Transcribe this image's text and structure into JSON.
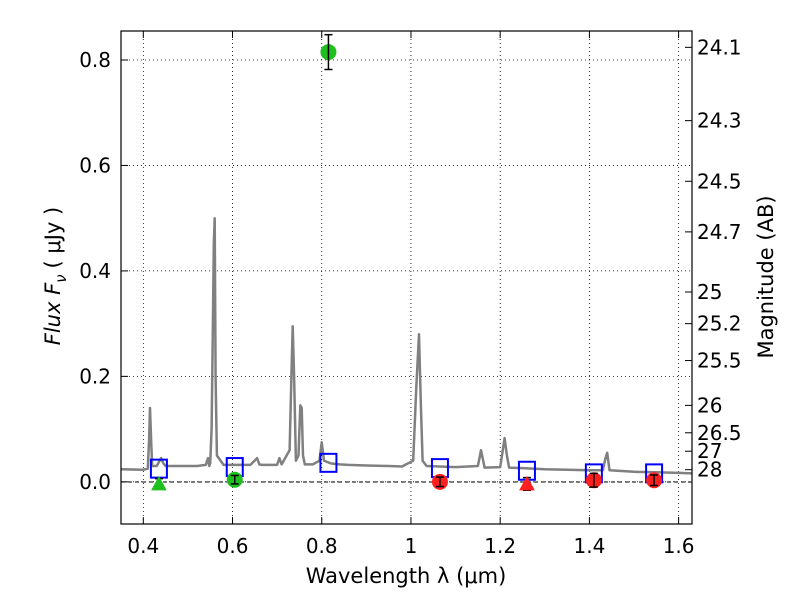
{
  "chart_data": {
    "type": "line",
    "xlabel": "Wavelength  λ (μm)",
    "ylabel": "Flux  F",
    "ylabel_subscript": "ν",
    "ylabel_unit": "( μJy )",
    "y2label": "Magnitude (AB)",
    "xlim": [
      0.35,
      1.63
    ],
    "ylim": [
      -0.08,
      0.855
    ],
    "grid": true,
    "x_ticks": [
      {
        "value": 0.4,
        "label": "0.4"
      },
      {
        "value": 0.6,
        "label": "0.6"
      },
      {
        "value": 0.8,
        "label": "0.8"
      },
      {
        "value": 1.0,
        "label": "1"
      },
      {
        "value": 1.2,
        "label": "1.2"
      },
      {
        "value": 1.4,
        "label": "1.4"
      },
      {
        "value": 1.6,
        "label": "1.6"
      }
    ],
    "y_ticks": [
      {
        "value": 0.0,
        "label": "0.0"
      },
      {
        "value": 0.2,
        "label": "0.2"
      },
      {
        "value": 0.4,
        "label": "0.4"
      },
      {
        "value": 0.6,
        "label": "0.6"
      },
      {
        "value": 0.8,
        "label": "0.8"
      }
    ],
    "y2_ticks": [
      {
        "label": "24.1",
        "flux": 0.824
      },
      {
        "label": "24.3",
        "flux": 0.685
      },
      {
        "label": "24.5",
        "flux": 0.57
      },
      {
        "label": "24.7",
        "flux": 0.474
      },
      {
        "label": "25",
        "flux": 0.36
      },
      {
        "label": "25.2",
        "flux": 0.3
      },
      {
        "label": "25.5",
        "flux": 0.23
      },
      {
        "label": "26",
        "flux": 0.145
      },
      {
        "label": "26.5",
        "flux": 0.093
      },
      {
        "label": "27",
        "flux": 0.058
      },
      {
        "label": "28",
        "flux": 0.023
      }
    ],
    "spectrum": {
      "color": "#808080",
      "x": [
        0.35,
        0.4,
        0.41,
        0.413,
        0.415,
        0.418,
        0.42,
        0.43,
        0.44,
        0.445,
        0.45,
        0.47,
        0.5,
        0.52,
        0.54,
        0.545,
        0.548,
        0.55,
        0.553,
        0.556,
        0.558,
        0.56,
        0.562,
        0.565,
        0.58,
        0.6,
        0.64,
        0.655,
        0.66,
        0.665,
        0.7,
        0.705,
        0.71,
        0.728,
        0.732,
        0.735,
        0.738,
        0.742,
        0.748,
        0.752,
        0.755,
        0.758,
        0.762,
        0.78,
        0.795,
        0.8,
        0.805,
        0.82,
        0.84,
        0.86,
        0.9,
        0.95,
        0.98,
        1.005,
        1.012,
        1.018,
        1.022,
        1.026,
        1.035,
        1.1,
        1.15,
        1.157,
        1.165,
        1.2,
        1.205,
        1.21,
        1.215,
        1.22,
        1.25,
        1.3,
        1.35,
        1.4,
        1.43,
        1.436,
        1.44,
        1.445,
        1.5,
        1.55,
        1.6,
        1.63
      ],
      "y": [
        0.024,
        0.023,
        0.025,
        0.08,
        0.14,
        0.07,
        0.03,
        0.03,
        0.045,
        0.035,
        0.03,
        0.03,
        0.03,
        0.03,
        0.032,
        0.045,
        0.03,
        0.035,
        0.1,
        0.3,
        0.45,
        0.5,
        0.2,
        0.05,
        0.032,
        0.032,
        0.032,
        0.045,
        0.033,
        0.032,
        0.032,
        0.045,
        0.033,
        0.06,
        0.2,
        0.295,
        0.2,
        0.04,
        0.05,
        0.145,
        0.14,
        0.05,
        0.033,
        0.033,
        0.04,
        0.075,
        0.04,
        0.035,
        0.033,
        0.032,
        0.031,
        0.03,
        0.029,
        0.04,
        0.18,
        0.28,
        0.15,
        0.04,
        0.03,
        0.028,
        0.03,
        0.06,
        0.027,
        0.028,
        0.055,
        0.083,
        0.05,
        0.027,
        0.026,
        0.024,
        0.023,
        0.022,
        0.022,
        0.045,
        0.055,
        0.022,
        0.019,
        0.018,
        0.017,
        0.016
      ]
    },
    "model_fluxes": {
      "color": "#0000ff",
      "x": [
        0.435,
        0.605,
        0.815,
        1.065,
        1.26,
        1.41,
        1.545
      ],
      "y": [
        0.025,
        0.028,
        0.036,
        0.026,
        0.021,
        0.016,
        0.016
      ]
    },
    "detections": [
      {
        "x": 0.815,
        "y": 0.815,
        "err": 0.033,
        "color": "#1fbf1f"
      },
      {
        "x": 0.605,
        "y": 0.004,
        "err": 0.008,
        "color": "#1fbf1f"
      },
      {
        "x": 1.065,
        "y": 0.0,
        "err": 0.009,
        "color": "#ff1f1f"
      },
      {
        "x": 1.41,
        "y": 0.003,
        "err": 0.013,
        "color": "#ff1f1f"
      },
      {
        "x": 1.545,
        "y": 0.003,
        "err": 0.01,
        "color": "#ff1f1f"
      }
    ],
    "upper_limits": [
      {
        "x": 0.435,
        "y": -0.004,
        "err": 0.01,
        "color": "#1fbf1f"
      },
      {
        "x": 1.26,
        "y": -0.004,
        "err": 0.012,
        "color": "#ff1f1f"
      }
    ]
  }
}
